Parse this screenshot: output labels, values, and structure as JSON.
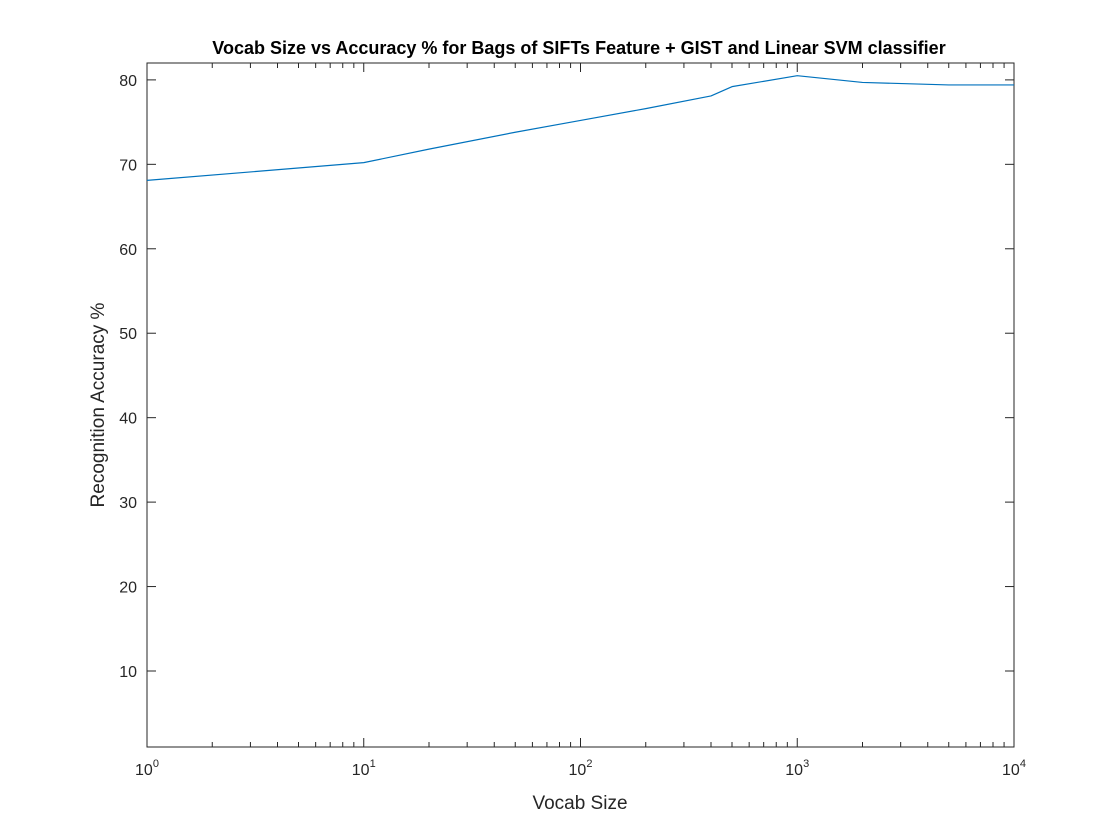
{
  "chart_data": {
    "type": "line",
    "title": "Vocab Size vs Accuracy % for Bags of SIFTs Feature + GIST and Linear SVM classifier",
    "xlabel": "Vocab Size",
    "ylabel": "Recognition Accuracy %",
    "xscale": "log",
    "xlim": [
      1,
      10000
    ],
    "ylim": [
      1,
      82
    ],
    "grid": false,
    "box": true,
    "x_ticks": [
      {
        "value": 1,
        "base": "10",
        "exp": "0"
      },
      {
        "value": 10,
        "base": "10",
        "exp": "1"
      },
      {
        "value": 100,
        "base": "10",
        "exp": "2"
      },
      {
        "value": 1000,
        "base": "10",
        "exp": "3"
      },
      {
        "value": 10000,
        "base": "10",
        "exp": "4"
      }
    ],
    "y_ticks": [
      10,
      20,
      30,
      40,
      50,
      60,
      70,
      80
    ],
    "series": [
      {
        "color": "#0072BD",
        "x": [
          1,
          10,
          20,
          50,
          100,
          200,
          400,
          500,
          1000,
          2000,
          5000,
          10000
        ],
        "y": [
          68.1,
          70.2,
          71.8,
          73.8,
          75.2,
          76.6,
          78.1,
          79.2,
          80.5,
          79.7,
          79.4,
          79.4
        ]
      }
    ]
  }
}
